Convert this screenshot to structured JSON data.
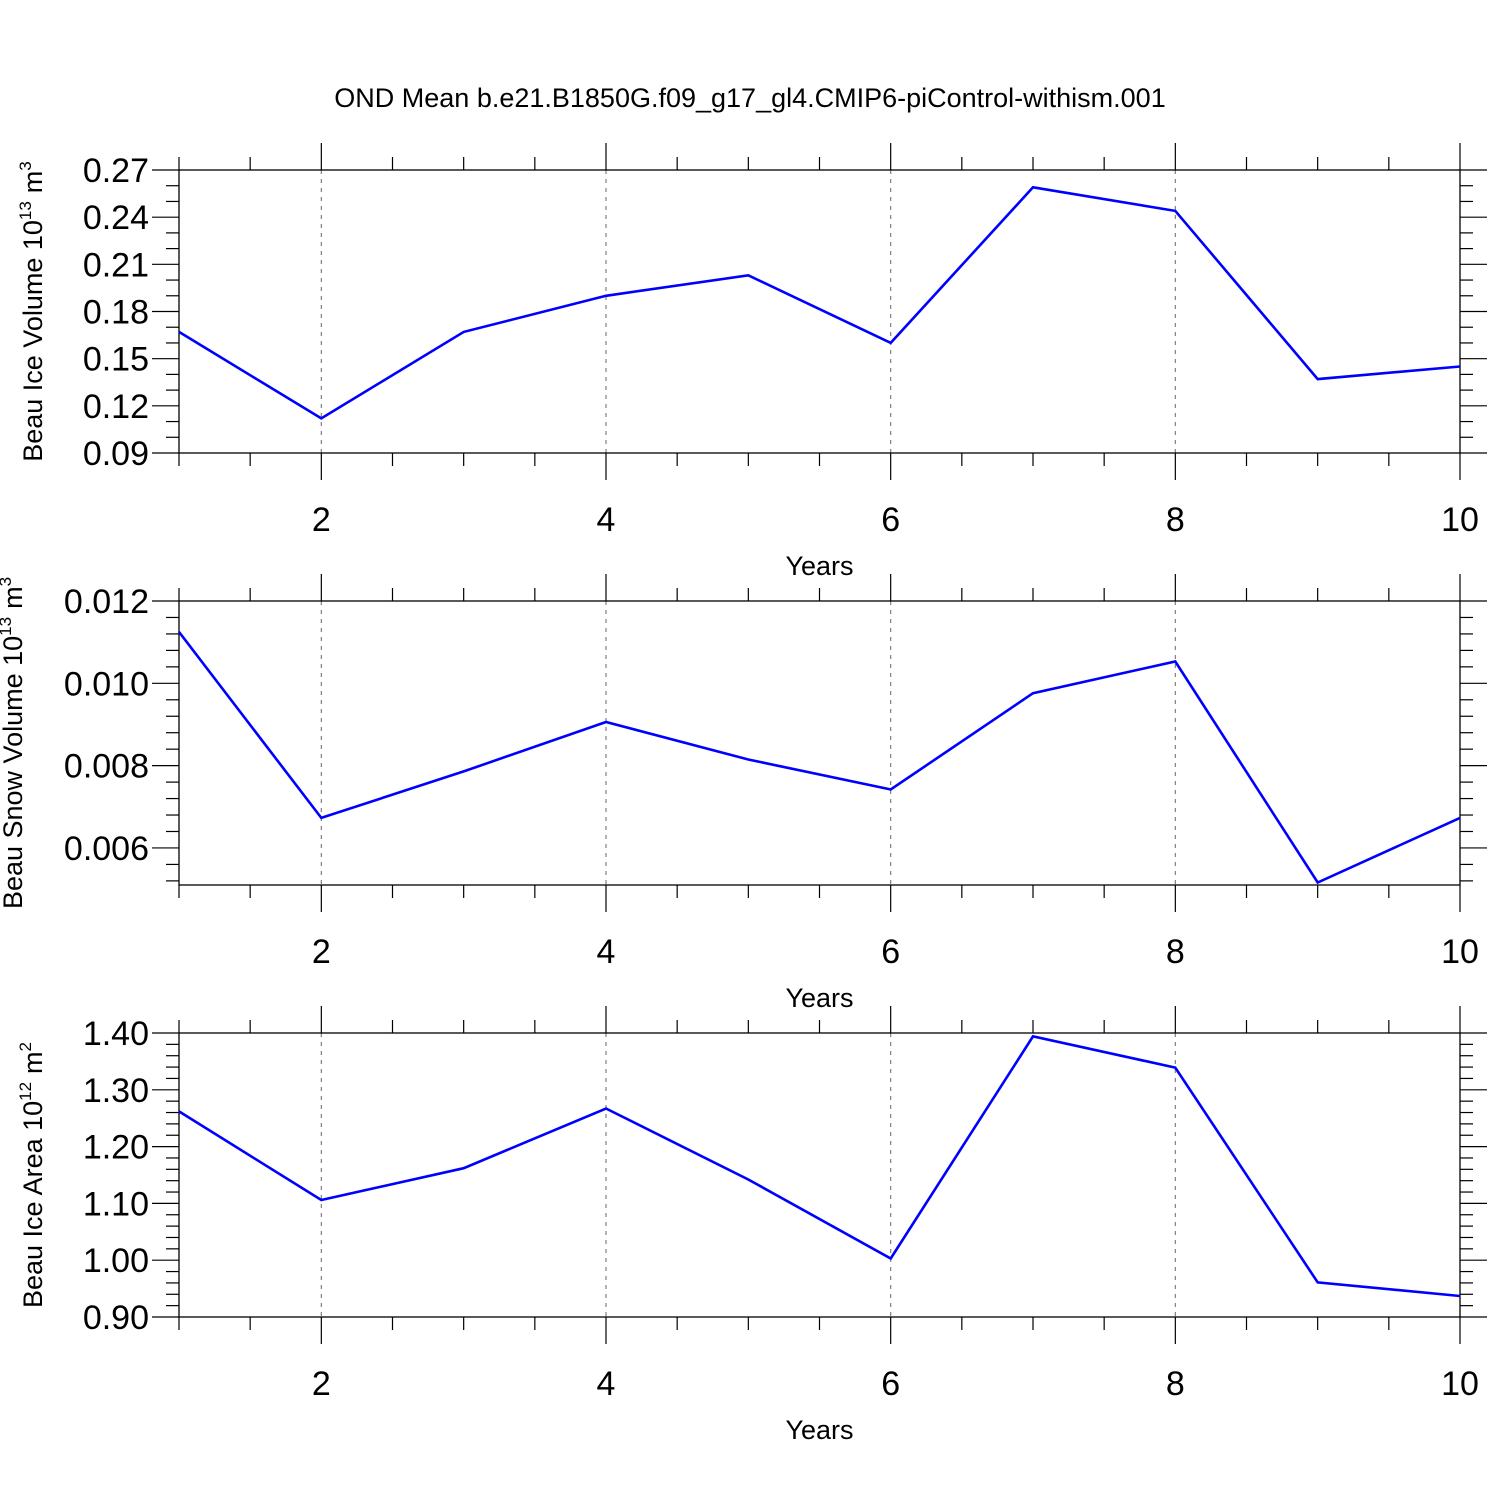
{
  "title": "OND Mean b.e21.B1850G.f09_g17_gl4.CMIP6-piControl-withism.001",
  "colors": {
    "line": "#0000ff",
    "axis": "#000000",
    "grid": "#808080"
  },
  "chart_data": [
    {
      "type": "line",
      "title": "",
      "ylabel": "Beau Ice Volume 10",
      "ylabel_exp": "13",
      "ylabel_unit": "m",
      "ylabel_unit_exp": "3",
      "xlabel": "Years",
      "xlim": [
        1,
        10
      ],
      "ylim": [
        0.09,
        0.27
      ],
      "xticks": [
        2,
        4,
        6,
        8,
        10
      ],
      "xtick_labels": [
        "2",
        "4",
        "6",
        "8",
        "10"
      ],
      "yticks": [
        0.09,
        0.12,
        0.15,
        0.18,
        0.21,
        0.24,
        0.27
      ],
      "ytick_labels": [
        "0.09",
        "0.12",
        "0.15",
        "0.18",
        "0.21",
        "0.24",
        "0.27"
      ],
      "grid": "vertical dashed at labeled years",
      "x": [
        1,
        2,
        3,
        4,
        5,
        6,
        7,
        8,
        9,
        10
      ],
      "values": [
        0.167,
        0.112,
        0.167,
        0.19,
        0.203,
        0.16,
        0.259,
        0.244,
        0.137,
        0.145
      ]
    },
    {
      "type": "line",
      "title": "",
      "ylabel": "Beau Snow Volume 10",
      "ylabel_exp": "13",
      "ylabel_unit": "m",
      "ylabel_unit_exp": "3",
      "xlabel": "Years",
      "xlim": [
        1,
        10
      ],
      "ylim": [
        0.0051,
        0.012
      ],
      "xticks": [
        2,
        4,
        6,
        8,
        10
      ],
      "xtick_labels": [
        "2",
        "4",
        "6",
        "8",
        "10"
      ],
      "yticks": [
        0.006,
        0.008,
        0.01,
        0.012
      ],
      "ytick_labels": [
        "0.006",
        "0.008",
        "0.010",
        "0.012"
      ],
      "grid": "vertical dashed at labeled years",
      "x": [
        1,
        2,
        3,
        4,
        5,
        6,
        7,
        8,
        9,
        10
      ],
      "values": [
        0.01125,
        0.00673,
        0.00786,
        0.00906,
        0.00815,
        0.00742,
        0.00976,
        0.01053,
        0.00516,
        0.00673
      ]
    },
    {
      "type": "line",
      "title": "",
      "ylabel": "Beau Ice Area 10",
      "ylabel_exp": "12",
      "ylabel_unit": "m",
      "ylabel_unit_exp": "2",
      "xlabel": "Years",
      "xlim": [
        1,
        10
      ],
      "ylim": [
        0.9,
        1.4
      ],
      "xticks": [
        2,
        4,
        6,
        8,
        10
      ],
      "xtick_labels": [
        "2",
        "4",
        "6",
        "8",
        "10"
      ],
      "yticks": [
        0.9,
        1.0,
        1.1,
        1.2,
        1.3,
        1.4
      ],
      "ytick_labels": [
        "0.90",
        "1.00",
        "1.10",
        "1.20",
        "1.30",
        "1.40"
      ],
      "grid": "vertical dashed at labeled years",
      "x": [
        1,
        2,
        3,
        4,
        5,
        6,
        7,
        8,
        9,
        10
      ],
      "values": [
        1.262,
        1.106,
        1.162,
        1.267,
        1.142,
        1.003,
        1.394,
        1.339,
        0.961,
        0.937
      ]
    }
  ]
}
